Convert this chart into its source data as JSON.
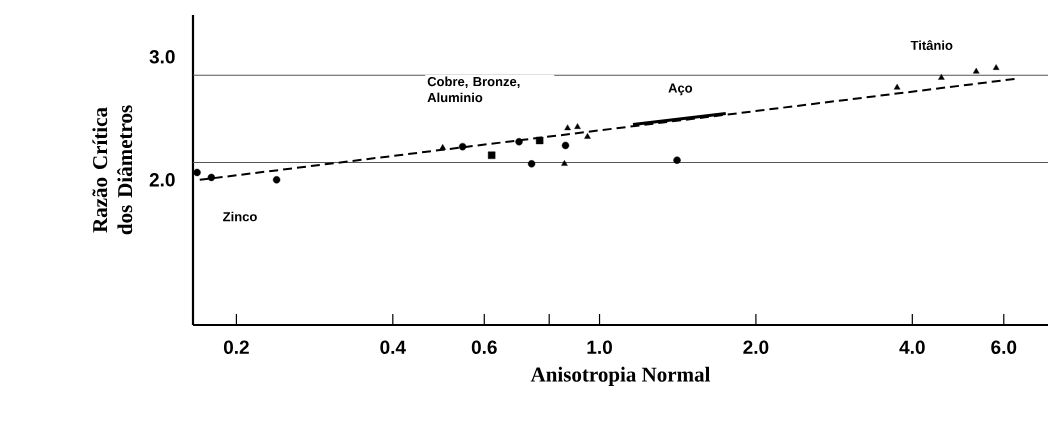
{
  "chart_data": {
    "type": "scatter",
    "xlabel": "Anisotropia Normal",
    "ylabel": "Razão Crítica dos Diâmetros",
    "xlim": [
      0.165,
      7.3
    ],
    "ylim": [
      0.82,
      3.34
    ],
    "log": "x",
    "xticks": [
      {
        "value": 0.2,
        "label": "0.2"
      },
      {
        "value": 0.4,
        "label": "0.4"
      },
      {
        "value": 0.6,
        "label": "0.6"
      },
      {
        "value": 0.8,
        "label": null
      },
      {
        "value": 1,
        "label": "1.0"
      },
      {
        "value": 2,
        "label": "2.0"
      },
      {
        "value": 4,
        "label": "4.0"
      },
      {
        "value": 6,
        "label": "6.0"
      }
    ],
    "yticks": [
      {
        "value": 2,
        "label": "2.0"
      },
      {
        "value": 3,
        "label": "3.0"
      }
    ],
    "series": [
      {
        "color": "#000000",
        "marker": "circle",
        "x": [
          0.168,
          0.179,
          0.239
        ],
        "values": [
          2.06,
          2.02,
          2.0
        ]
      },
      {
        "color": "#000000",
        "marker": "triangle",
        "x": [
          0.499,
          0.868,
          0.907,
          0.948,
          0.856
        ],
        "values": [
          2.26,
          2.42,
          2.43,
          2.35,
          2.13
        ]
      },
      {
        "color": "#000000",
        "marker": "circle",
        "x": [
          0.545,
          0.7,
          0.86,
          0.74,
          1.41
        ],
        "values": [
          2.27,
          2.31,
          2.28,
          2.13,
          2.16
        ]
      },
      {
        "color": "#000000",
        "marker": "square",
        "x": [
          0.62,
          0.767
        ],
        "values": [
          2.2,
          2.32
        ]
      },
      {
        "color": "#000000",
        "marker": "triangle",
        "x": [
          3.74,
          4.55,
          5.31,
          5.8
        ],
        "values": [
          2.75,
          2.83,
          2.88,
          2.91
        ]
      },
      {
        "type": "line",
        "color": "#000000",
        "marker": "none",
        "line_style": "solid",
        "x": [
          1.16,
          1.75
        ],
        "values": [
          2.45,
          2.54
        ]
      },
      {
        "type": "line",
        "color": "#000000",
        "marker": "none",
        "line_style": "dashed",
        "x": [
          0.17,
          6.3
        ],
        "values": [
          2.0,
          2.82
        ]
      }
    ],
    "ref_lines": [
      {
        "axis": "y",
        "value": 2.85,
        "color": "#555555"
      },
      {
        "axis": "y",
        "value": 2.14,
        "color": "#555555"
      }
    ],
    "annotations": [
      "Cobre, Bronze, Aluminio",
      "Aço",
      "Titânio",
      "Zinco"
    ]
  }
}
